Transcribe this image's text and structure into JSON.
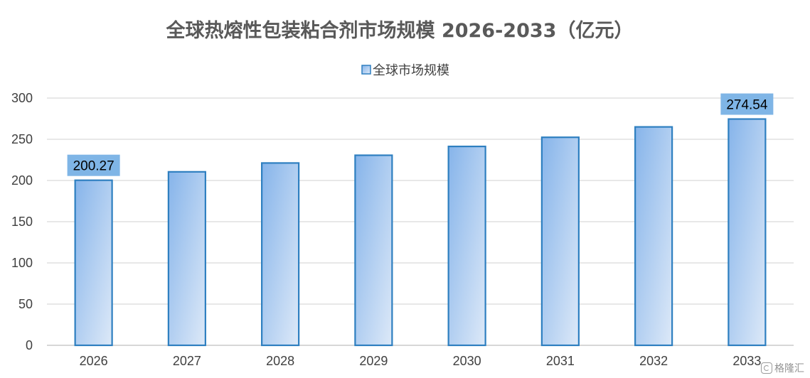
{
  "chart_data": {
    "type": "bar",
    "title": "全球热熔性包装粘合剂市场规模 2026-2033（亿元）",
    "categories": [
      "2026",
      "2027",
      "2028",
      "2029",
      "2030",
      "2031",
      "2032",
      "2033"
    ],
    "series": [
      {
        "name": "全球市场规模",
        "values": [
          200.27,
          210.5,
          221.2,
          230.6,
          241.3,
          252.4,
          265.0,
          274.54
        ]
      }
    ],
    "data_labels": [
      {
        "category": "2026",
        "text": "200.27"
      },
      {
        "category": "2033",
        "text": "274.54"
      }
    ],
    "ylim": [
      0,
      300
    ],
    "yticks": [
      "0",
      "50",
      "100",
      "150",
      "200",
      "250",
      "300"
    ],
    "grid": true,
    "legend_position": "top",
    "colors": {
      "bar_fill_top": "#86b4ea",
      "bar_fill_bottom": "#dde9f8",
      "bar_stroke": "#2e7fc0",
      "label_bg": "#7fb5e6",
      "grid": "#d9d9d9"
    }
  },
  "watermark": {
    "text": "格隆汇",
    "icon": "gelonghui-logo-icon"
  }
}
